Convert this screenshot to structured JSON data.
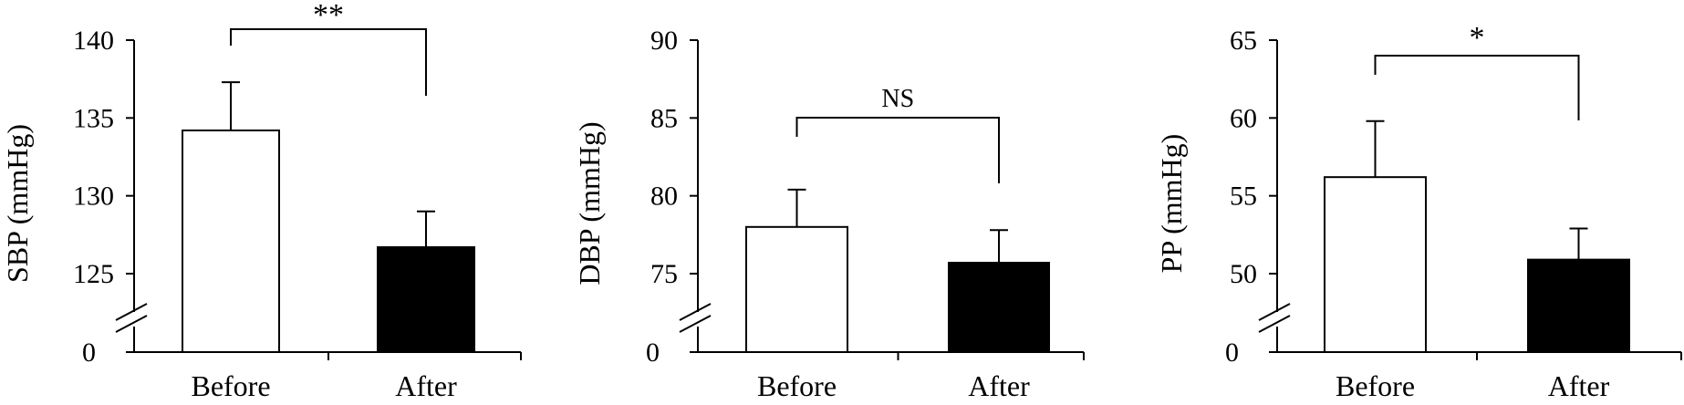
{
  "chart_data": [
    {
      "type": "bar",
      "ylabel": "SBP (mmHg)",
      "categories": [
        "Before",
        "After"
      ],
      "values": [
        134.2,
        126.7
      ],
      "errors": [
        3.1,
        2.3
      ],
      "bar_colors": [
        "#ffffff",
        "#000000"
      ],
      "yticks": [
        125,
        130,
        135,
        140
      ],
      "ytick_labels": [
        "125",
        "130",
        "135",
        "140"
      ],
      "ylim": [
        125,
        140
      ],
      "axis_break": true,
      "break_label": "0",
      "significance": "**"
    },
    {
      "type": "bar",
      "ylabel": "DBP (mmHg)",
      "categories": [
        "Before",
        "After"
      ],
      "values": [
        78.0,
        75.7
      ],
      "errors": [
        2.4,
        2.1
      ],
      "bar_colors": [
        "#ffffff",
        "#000000"
      ],
      "yticks": [
        75,
        80,
        85,
        90
      ],
      "ytick_labels": [
        "75",
        "80",
        "85",
        "90"
      ],
      "ylim": [
        75,
        90
      ],
      "axis_break": true,
      "break_label": "0",
      "significance": "NS"
    },
    {
      "type": "bar",
      "ylabel": "PP (mmHg)",
      "categories": [
        "Before",
        "After"
      ],
      "values": [
        56.2,
        50.9
      ],
      "errors": [
        3.6,
        2.0
      ],
      "bar_colors": [
        "#ffffff",
        "#000000"
      ],
      "yticks": [
        50,
        55,
        60,
        65
      ],
      "ytick_labels": [
        "50",
        "55",
        "60",
        "65"
      ],
      "ylim": [
        50,
        65
      ],
      "axis_break": true,
      "break_label": "0",
      "significance": "*"
    }
  ]
}
